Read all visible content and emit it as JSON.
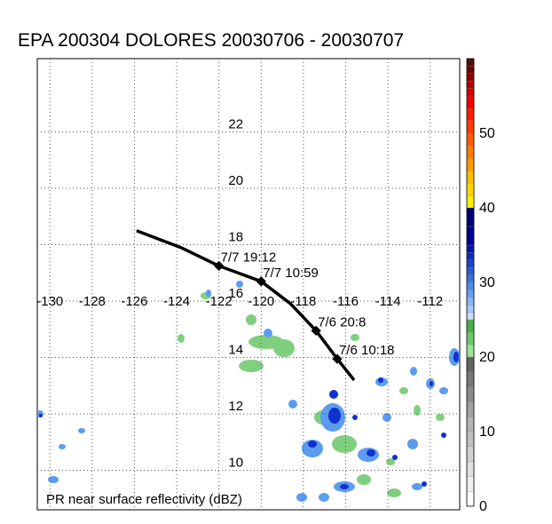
{
  "title": "EPA 200304 DOLORES 20030706 - 20030707",
  "caption": "PR near surface reflectivity (dBZ)",
  "lon_ticks": [
    -130,
    -128,
    -126,
    -124,
    -122,
    -120,
    -118,
    -116,
    -114,
    -112
  ],
  "lat_ticks": [
    10,
    12,
    14,
    16,
    18,
    20,
    22
  ],
  "lon_range": [
    -130.6,
    -110.6
  ],
  "lat_range": [
    8.6,
    24.6
  ],
  "track": [
    {
      "lon": -125.9,
      "lat": 18.5
    },
    {
      "lon": -123.8,
      "lat": 17.9
    },
    {
      "lon": -122.0,
      "lat": 17.25
    },
    {
      "lon": -120.0,
      "lat": 16.7
    },
    {
      "lon": -118.6,
      "lat": 15.9
    },
    {
      "lon": -117.4,
      "lat": 14.95
    },
    {
      "lon": -116.4,
      "lat": 13.95
    },
    {
      "lon": -115.6,
      "lat": 13.2
    }
  ],
  "track_points": [
    {
      "lon": -122.0,
      "lat": 17.25,
      "label": "7/7 19:12"
    },
    {
      "lon": -120.0,
      "lat": 16.7,
      "label": "7/7 10:59"
    },
    {
      "lon": -117.4,
      "lat": 14.95,
      "label": "7/6 20:8"
    },
    {
      "lon": -116.4,
      "lat": 13.95,
      "label": "7/6 10:18"
    }
  ],
  "colorbar": {
    "min": 0,
    "max": 60,
    "tick_labels": [
      "0",
      "10",
      "20",
      "30",
      "40",
      "50"
    ],
    "tick_values": [
      0,
      10,
      20,
      30,
      40,
      50
    ]
  },
  "colors": {
    "track": "#000000",
    "grid": "#555555",
    "rain_light": "#7fcf7f",
    "rain_mid": "#5b9cf0",
    "rain_heavy": "#1030d0"
  }
}
